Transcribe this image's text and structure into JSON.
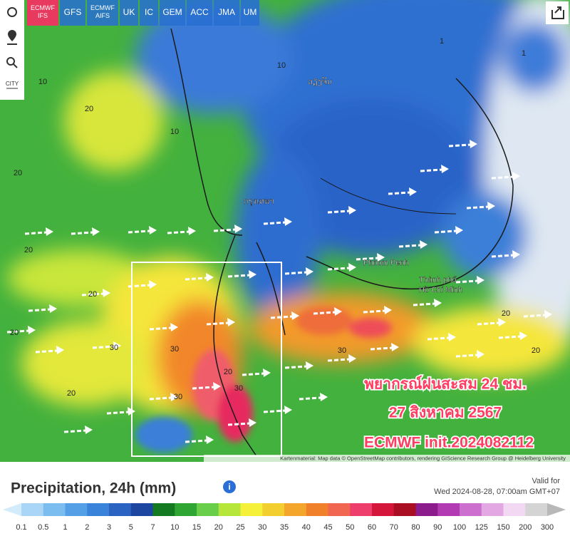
{
  "model_tabs": [
    "ECMWF IFS",
    "GFS",
    "ECMWF AIFS",
    "UK",
    "IC",
    "GEM",
    "ACC",
    "JMA",
    "UM"
  ],
  "tools": {
    "city": "CITY"
  },
  "map": {
    "places": [
      "ວຽງຈັນ",
      "กรุงเทพฯ",
      "Phnom Penh",
      "Thành phố",
      "Hồ Chí Minh"
    ],
    "contour_labels": [
      "20",
      "20",
      "10",
      "10",
      "10",
      "20",
      "30",
      "30",
      "30",
      "30",
      "30",
      "20",
      "20",
      "20",
      "20",
      "20",
      "20",
      "1",
      "1"
    ],
    "overlay": [
      "พยากรณ์ฝนสะสม 24 ชม.",
      "27 สิงหาคม 2567",
      "ECMWF init.2024082112"
    ],
    "attribution": "Kartenmaterial: Map data © OpenStreetMap contributors, rendering GIScience Research Group @ Heidelberg University"
  },
  "footer": {
    "title": "Precipitation, 24h (mm)",
    "valid_label": "Valid for",
    "valid_time": "Wed 2024-08-28, 07:00am GMT+07",
    "legend": {
      "values": [
        0.1,
        0.5,
        1,
        2,
        3,
        5,
        7,
        10,
        15,
        20,
        25,
        30,
        35,
        40,
        45,
        50,
        60,
        70,
        80,
        90,
        100,
        125,
        150,
        200,
        300
      ],
      "colors": [
        "#d3ecfb",
        "#a9d6f6",
        "#7cbdf0",
        "#559fe6",
        "#3a83da",
        "#2a63c2",
        "#1d46a0",
        "#137a22",
        "#2fa534",
        "#69cf4a",
        "#b6e63a",
        "#f5f03a",
        "#f2cf2f",
        "#f4a62c",
        "#f1802b",
        "#f06650",
        "#ee3f6c",
        "#d3163a",
        "#aa0e22",
        "#8c1b8c",
        "#b23bb4",
        "#cc6fcf",
        "#e3a8e4",
        "#f3d8f3",
        "#d4d4d4",
        "#b8b8b8"
      ]
    }
  }
}
